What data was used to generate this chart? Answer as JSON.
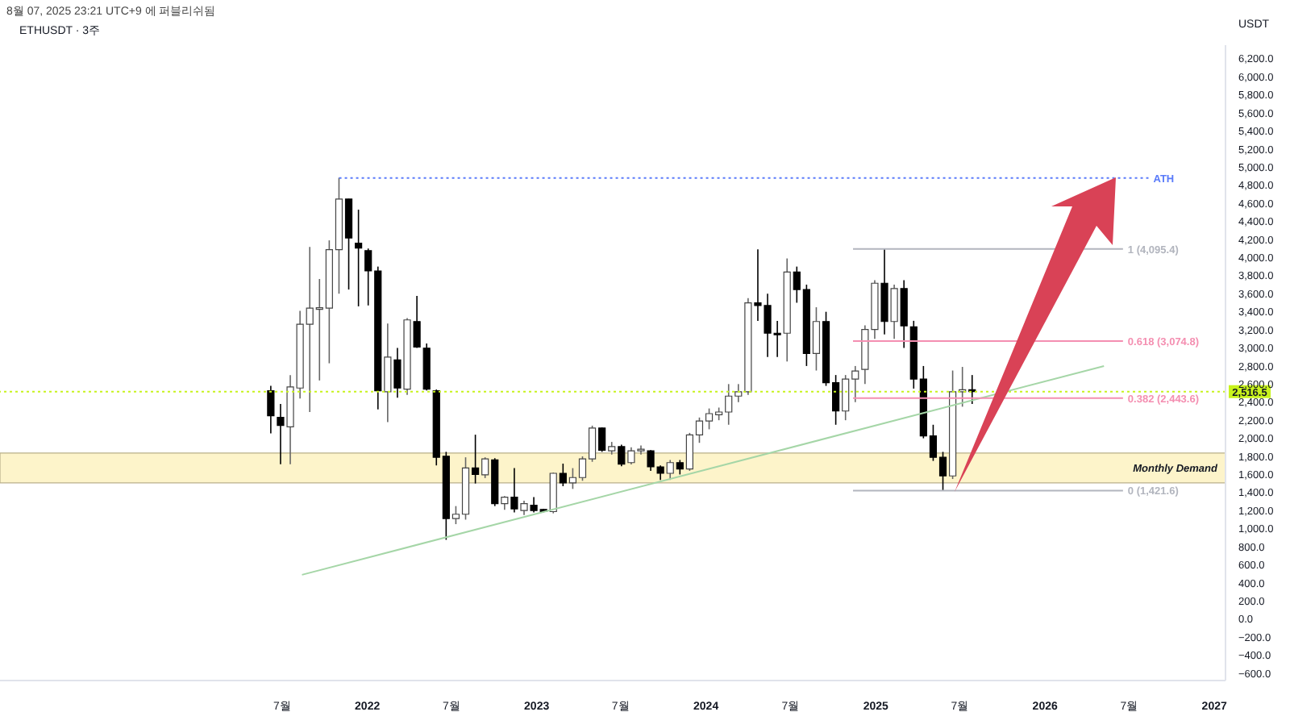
{
  "chart_data": {
    "type": "candlestick",
    "title": "ETHUSDT · 3주",
    "annotations": [
      "8월 07, 2025 23:21 UTC+9 에 퍼블리쉬됨"
    ],
    "ylabel": "USDT",
    "x": [
      "2021-06-07",
      "2021-06-28",
      "2021-07-19",
      "2021-08-09",
      "2021-08-30",
      "2021-09-20",
      "2021-10-11",
      "2021-11-01",
      "2021-11-22",
      "2021-12-13",
      "2022-01-03",
      "2022-01-24",
      "2022-02-14",
      "2022-03-07",
      "2022-03-28",
      "2022-04-18",
      "2022-05-09",
      "2022-05-30",
      "2022-06-20",
      "2022-07-11",
      "2022-08-01",
      "2022-08-22",
      "2022-09-12",
      "2022-10-03",
      "2022-10-24",
      "2022-11-14",
      "2022-12-05",
      "2022-12-26",
      "2023-01-16",
      "2023-02-06",
      "2023-02-27",
      "2023-03-20",
      "2023-04-10",
      "2023-05-01",
      "2023-05-22",
      "2023-06-12",
      "2023-07-03",
      "2023-07-24",
      "2023-08-14",
      "2023-09-04",
      "2023-09-25",
      "2023-10-16",
      "2023-11-06",
      "2023-11-27",
      "2023-12-18",
      "2024-01-08",
      "2024-01-29",
      "2024-02-19",
      "2024-03-11",
      "2024-04-01",
      "2024-04-22",
      "2024-05-13",
      "2024-06-03",
      "2024-06-24",
      "2024-07-15",
      "2024-08-05",
      "2024-08-26",
      "2024-09-16",
      "2024-10-07",
      "2024-10-28",
      "2024-11-18",
      "2024-12-09",
      "2024-12-30",
      "2025-01-20",
      "2025-02-10",
      "2025-03-03",
      "2025-03-24",
      "2025-04-14",
      "2025-05-05",
      "2025-05-26",
      "2025-06-16",
      "2025-07-07",
      "2025-07-28"
    ],
    "ohlc": [
      [
        2526,
        2580,
        2055,
        2249
      ],
      [
        2232,
        2380,
        1713,
        2143
      ],
      [
        2126,
        2700,
        1713,
        2568
      ],
      [
        2556,
        3410,
        2440,
        3263
      ],
      [
        3263,
        4117,
        2290,
        3440
      ],
      [
        3428,
        3763,
        2640,
        3440
      ],
      [
        3440,
        4190,
        2830,
        4088
      ],
      [
        4088,
        4883,
        3600,
        4647
      ],
      [
        4647,
        4650,
        3646,
        4217
      ],
      [
        4158,
        4530,
        3460,
        4105
      ],
      [
        4076,
        4100,
        3470,
        3852
      ],
      [
        3852,
        3900,
        2320,
        2526
      ],
      [
        2515,
        3270,
        2180,
        2898
      ],
      [
        2868,
        3000,
        2450,
        2556
      ],
      [
        2544,
        3330,
        2480,
        3310
      ],
      [
        3292,
        3575,
        3000,
        3009
      ],
      [
        2998,
        3050,
        2530,
        2544
      ],
      [
        2526,
        2540,
        1700,
        1790
      ],
      [
        1802,
        1850,
        877,
        1112
      ],
      [
        1112,
        1250,
        1050,
        1160
      ],
      [
        1160,
        1790,
        1100,
        1672
      ],
      [
        1672,
        2040,
        1500,
        1601
      ],
      [
        1596,
        1790,
        1560,
        1772
      ],
      [
        1761,
        1780,
        1250,
        1278
      ],
      [
        1278,
        1360,
        1210,
        1348
      ],
      [
        1348,
        1670,
        1180,
        1219
      ],
      [
        1201,
        1310,
        1150,
        1278
      ],
      [
        1260,
        1350,
        1180,
        1201
      ],
      [
        1213,
        1220,
        1180,
        1189
      ],
      [
        1189,
        1620,
        1170,
        1613
      ],
      [
        1613,
        1720,
        1470,
        1507
      ],
      [
        1507,
        1670,
        1440,
        1566
      ],
      [
        1566,
        1800,
        1530,
        1772
      ],
      [
        1772,
        2140,
        1740,
        2114
      ],
      [
        2114,
        2120,
        1850,
        1867
      ],
      [
        1861,
        1960,
        1820,
        1908
      ],
      [
        1908,
        1930,
        1690,
        1713
      ],
      [
        1731,
        1900,
        1710,
        1861
      ],
      [
        1861,
        1920,
        1820,
        1867
      ],
      [
        1861,
        1870,
        1640,
        1684
      ],
      [
        1684,
        1700,
        1540,
        1613
      ],
      [
        1613,
        1760,
        1540,
        1731
      ],
      [
        1731,
        1760,
        1600,
        1660
      ],
      [
        1660,
        2060,
        1640,
        2037
      ],
      [
        2037,
        2230,
        1950,
        2191
      ],
      [
        2191,
        2330,
        2100,
        2273
      ],
      [
        2261,
        2340,
        2200,
        2291
      ],
      [
        2291,
        2600,
        2150,
        2467
      ],
      [
        2467,
        2600,
        2400,
        2515
      ],
      [
        2515,
        3550,
        2480,
        3498
      ],
      [
        3498,
        4090,
        3300,
        3469
      ],
      [
        3469,
        3600,
        2900,
        3163
      ],
      [
        3163,
        3300,
        2900,
        3145
      ],
      [
        3163,
        3990,
        2850,
        3840
      ],
      [
        3840,
        3900,
        3500,
        3646
      ],
      [
        3646,
        3700,
        2800,
        2939
      ],
      [
        2939,
        3450,
        2750,
        3292
      ],
      [
        3292,
        3400,
        2580,
        2615
      ],
      [
        2615,
        2700,
        2150,
        2302
      ],
      [
        2302,
        2700,
        2200,
        2656
      ],
      [
        2656,
        2800,
        2400,
        2744
      ],
      [
        2762,
        3250,
        2600,
        3204
      ],
      [
        3204,
        3750,
        3100,
        3716
      ],
      [
        3716,
        4095,
        3150,
        3292
      ],
      [
        3292,
        3700,
        3100,
        3657
      ],
      [
        3657,
        3750,
        3000,
        3245
      ],
      [
        3233,
        3300,
        2550,
        2656
      ],
      [
        2656,
        2800,
        2000,
        2026
      ],
      [
        2026,
        2150,
        1750,
        1790
      ],
      [
        1790,
        1850,
        1420,
        1584
      ],
      [
        1584,
        2750,
        1550,
        2515
      ],
      [
        2515,
        2790,
        2350,
        2538
      ],
      [
        2538,
        2700,
        2380,
        2516.5
      ]
    ],
    "series": [
      {
        "type": "line",
        "x": [
          "2021-08-13",
          "2026-05-08"
        ],
        "values": [
          490,
          2800
        ],
        "color": "#a5d6a7",
        "line_style": "solid"
      },
      {
        "type": "line",
        "name": "ATH",
        "x": [
          "2021-11-01",
          "2026-08-12"
        ],
        "values": [
          4880,
          4880
        ],
        "color": "#5b7cfa",
        "line_style": "dotted"
      },
      {
        "type": "line",
        "name": "1 (4,095.4)",
        "x": [
          "2024-11-13",
          "2026-06-18"
        ],
        "values": [
          4095.4,
          4095.4
        ],
        "color": "#b2b5be",
        "line_style": "solid"
      },
      {
        "type": "line",
        "name": "0.618 (3,074.8)",
        "x": [
          "2024-11-13",
          "2026-06-18"
        ],
        "values": [
          3074.8,
          3074.8
        ],
        "color": "#f48fb1",
        "line_style": "solid"
      },
      {
        "type": "line",
        "name": "0.382 (2,443.6)",
        "x": [
          "2024-11-13",
          "2026-06-18"
        ],
        "values": [
          2443.6,
          2443.6
        ],
        "color": "#f48fb1",
        "line_style": "solid"
      },
      {
        "type": "line",
        "name": "0 (1,421.6)",
        "x": [
          "2024-11-13",
          "2026-06-18"
        ],
        "values": [
          1421.6,
          1421.6
        ],
        "color": "#b2b5be",
        "line_style": "solid"
      }
    ],
    "bands": [
      {
        "axis": "y",
        "from": 1507,
        "to": 1837,
        "label": "Monthly Demand",
        "color": "#fdf3c4"
      }
    ],
    "ref_lines": [
      {
        "axis": "y",
        "value": 2516.5,
        "label": "2,516.5",
        "color": "#c8f31d",
        "line_style": "dotted"
      }
    ],
    "xlim": [
      "2019-11-01",
      "2027-01-25"
    ],
    "xticks": [
      {
        "value": "2021-07-01",
        "label": "7월"
      },
      {
        "value": "2022-01-01",
        "label": "2022"
      },
      {
        "value": "2022-07-01",
        "label": "7월"
      },
      {
        "value": "2023-01-01",
        "label": "2023"
      },
      {
        "value": "2023-07-01",
        "label": "7월"
      },
      {
        "value": "2024-01-01",
        "label": "2024"
      },
      {
        "value": "2024-07-01",
        "label": "7월"
      },
      {
        "value": "2025-01-01",
        "label": "2025"
      },
      {
        "value": "2025-07-01",
        "label": "7월"
      },
      {
        "value": "2026-01-01",
        "label": "2026"
      },
      {
        "value": "2026-07-01",
        "label": "7월"
      },
      {
        "value": "2027-01-01",
        "label": "2027"
      }
    ],
    "ylim": [
      -680,
      6350
    ],
    "yticks": [
      {
        "value": -600,
        "label": "−600.0"
      },
      {
        "value": -400,
        "label": "−400.0"
      },
      {
        "value": -200,
        "label": "−200.0"
      },
      {
        "value": 0,
        "label": "0.0"
      },
      {
        "value": 200,
        "label": "200.0"
      },
      {
        "value": 400,
        "label": "400.0"
      },
      {
        "value": 600,
        "label": "600.0"
      },
      {
        "value": 800,
        "label": "800.0"
      },
      {
        "value": 1000,
        "label": "1,000.0"
      },
      {
        "value": 1200,
        "label": "1,200.0"
      },
      {
        "value": 1400,
        "label": "1,400.0"
      },
      {
        "value": 1600,
        "label": "1,600.0"
      },
      {
        "value": 1800,
        "label": "1,800.0"
      },
      {
        "value": 2000,
        "label": "2,000.0"
      },
      {
        "value": 2200,
        "label": "2,200.0"
      },
      {
        "value": 2400,
        "label": "2,400.0"
      },
      {
        "value": 2600,
        "label": "2,600.0"
      },
      {
        "value": 2800,
        "label": "2,800.0"
      },
      {
        "value": 3000,
        "label": "3,000.0"
      },
      {
        "value": 3200,
        "label": "3,200.0"
      },
      {
        "value": 3400,
        "label": "3,400.0"
      },
      {
        "value": 3600,
        "label": "3,600.0"
      },
      {
        "value": 3800,
        "label": "3,800.0"
      },
      {
        "value": 4000,
        "label": "4,000.0"
      },
      {
        "value": 4200,
        "label": "4,200.0"
      },
      {
        "value": 4400,
        "label": "4,400.0"
      },
      {
        "value": 4600,
        "label": "4,600.0"
      },
      {
        "value": 4800,
        "label": "4,800.0"
      },
      {
        "value": 5000,
        "label": "5,000.0"
      },
      {
        "value": 5200,
        "label": "5,200.0"
      },
      {
        "value": 5400,
        "label": "5,400.0"
      },
      {
        "value": 5600,
        "label": "5,600.0"
      },
      {
        "value": 5800,
        "label": "5,800.0"
      },
      {
        "value": 6000,
        "label": "6,000.0"
      },
      {
        "value": 6200,
        "label": "6,200.0"
      }
    ]
  }
}
